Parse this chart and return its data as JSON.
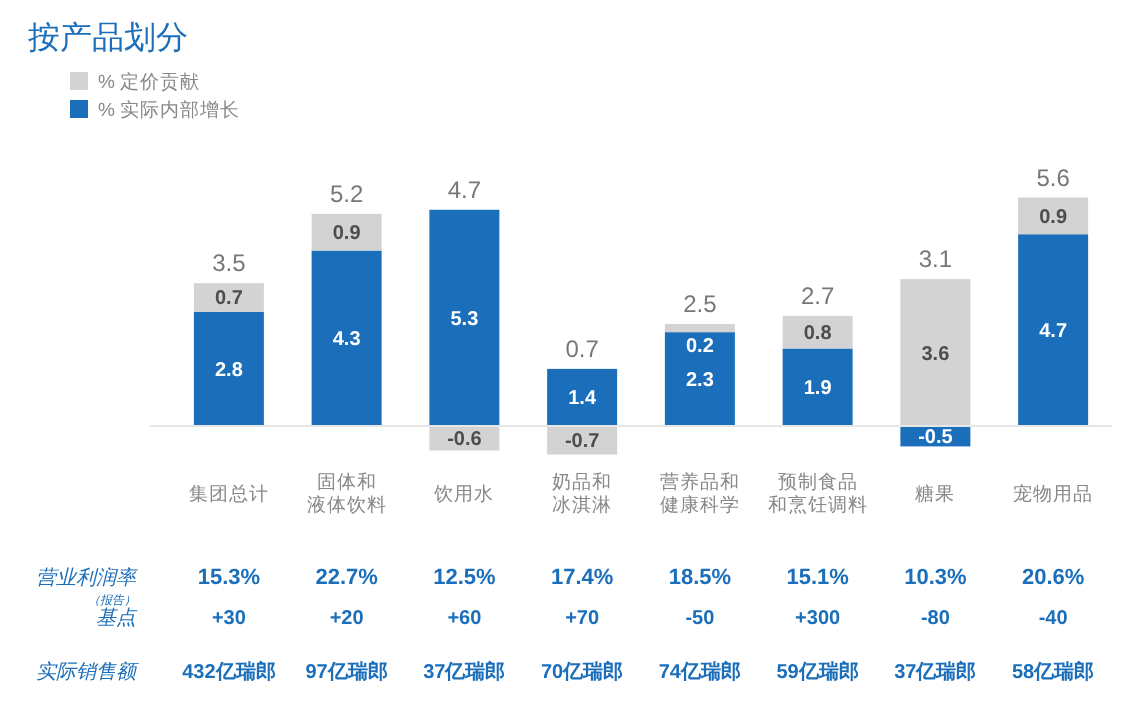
{
  "chart_data": {
    "type": "bar",
    "title": "按产品划分",
    "stacked": true,
    "data_labels": true,
    "legend": "top left",
    "categories": [
      "集团总计",
      "固体和液体饮料",
      "饮用水",
      "奶品和冰淇淋",
      "营养品和健康科学",
      "预制食品和烹饪调料",
      "糖果",
      "宠物用品"
    ],
    "series": [
      {
        "name": "% 实际内部增长",
        "color": "#1b6fba",
        "values": [
          2.8,
          4.3,
          5.3,
          1.4,
          2.3,
          1.9,
          -0.5,
          4.7
        ]
      },
      {
        "name": "% 定价贡献",
        "color": "#d3d3d3",
        "values": [
          0.7,
          0.9,
          -0.6,
          -0.7,
          0.2,
          0.8,
          3.6,
          0.9
        ]
      }
    ],
    "totals": [
      "3.5",
      "5.2",
      "4.7",
      "0.7",
      "2.5",
      "2.7",
      "3.1",
      "5.6"
    ],
    "annotations": [
      "营业利润率",
      "（报告）",
      "15.3%",
      "22.7%",
      "12.5%",
      "17.4%",
      "18.5%",
      "15.1%",
      "10.3%",
      "20.6%",
      "基点",
      "+30",
      "+20",
      "+60",
      "+70",
      "-50",
      "+300",
      "-80",
      "-40",
      "实际销售额",
      "432亿瑞郎",
      "97亿瑞郎",
      "37亿瑞郎",
      "70亿瑞郎",
      "74亿瑞郎",
      "59亿瑞郎",
      "37亿瑞郎",
      "58亿瑞郎"
    ]
  }
}
